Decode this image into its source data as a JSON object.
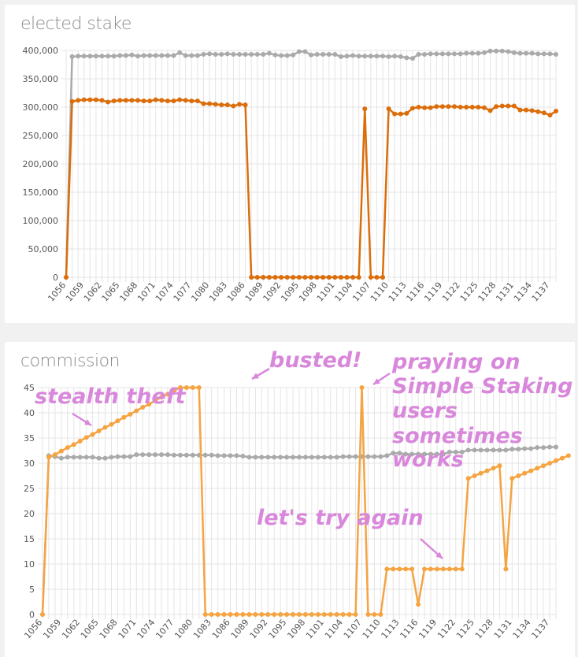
{
  "chart_data": [
    {
      "type": "line",
      "title": "elected stake",
      "x_start": 1056,
      "x_end": 1138,
      "xticks": [
        1056,
        1059,
        1062,
        1065,
        1068,
        1071,
        1074,
        1077,
        1080,
        1083,
        1086,
        1089,
        1092,
        1095,
        1098,
        1101,
        1104,
        1107,
        1110,
        1113,
        1116,
        1119,
        1122,
        1125,
        1128,
        1131,
        1134,
        1137
      ],
      "yticks": [
        0,
        50000,
        100000,
        150000,
        200000,
        250000,
        300000,
        350000,
        400000
      ],
      "ytick_labels": [
        "0",
        "50,000",
        "100,000",
        "150,000",
        "200,000",
        "250,000",
        "300,000",
        "350,000",
        "400,000"
      ],
      "ylim": [
        0,
        400000
      ],
      "grid": true,
      "series": [
        {
          "color": "#aaaaaa",
          "values": [
            0,
            389000,
            390000,
            390000,
            390000,
            390000,
            390000,
            390000,
            390000,
            391000,
            391000,
            392000,
            390000,
            391000,
            391000,
            391000,
            391000,
            391000,
            391000,
            396000,
            391000,
            391000,
            391000,
            393000,
            394000,
            393000,
            393000,
            394000,
            393000,
            393000,
            393000,
            393000,
            393000,
            393000,
            395000,
            392000,
            391000,
            391000,
            392000,
            398000,
            398000,
            392000,
            393000,
            393000,
            393000,
            393000,
            389000,
            390000,
            391000,
            390000,
            390000,
            390000,
            390000,
            390000,
            389000,
            390000,
            389000,
            387000,
            386000,
            393000,
            393000,
            394000,
            394000,
            394000,
            394000,
            394000,
            394000,
            395000,
            395000,
            395000,
            396000,
            399000,
            399000,
            399000,
            398000,
            396000,
            395000,
            395000,
            395000,
            394000,
            394000,
            394000,
            393000
          ]
        },
        {
          "color": "#db6d0b",
          "values": [
            0,
            310000,
            312000,
            313000,
            313000,
            313000,
            312000,
            309000,
            311000,
            312000,
            312000,
            312000,
            312000,
            311000,
            311000,
            313000,
            312000,
            311000,
            311000,
            313000,
            312000,
            311000,
            311000,
            306000,
            306000,
            305000,
            304000,
            304000,
            302000,
            305000,
            304000,
            0,
            0,
            0,
            0,
            0,
            0,
            0,
            0,
            0,
            0,
            0,
            0,
            0,
            0,
            0,
            0,
            0,
            0,
            0,
            297000,
            0,
            0,
            0,
            297000,
            288000,
            288000,
            289000,
            298000,
            300000,
            299000,
            299000,
            301000,
            301000,
            301000,
            301000,
            300000,
            300000,
            300000,
            300000,
            299000,
            294000,
            301000,
            302000,
            302000,
            302000,
            295000,
            295000,
            294000,
            292000,
            290000,
            286000,
            293000
          ]
        }
      ]
    },
    {
      "type": "line",
      "title": "commission",
      "x_start": 1056,
      "x_end": 1138,
      "xticks": [
        1056,
        1059,
        1062,
        1065,
        1068,
        1071,
        1074,
        1077,
        1080,
        1083,
        1086,
        1089,
        1092,
        1095,
        1098,
        1101,
        1104,
        1107,
        1110,
        1113,
        1116,
        1119,
        1122,
        1125,
        1128,
        1131,
        1134,
        1137
      ],
      "yticks": [
        0,
        5,
        10,
        15,
        20,
        25,
        30,
        35,
        40,
        45
      ],
      "ytick_labels": [
        "0",
        "5",
        "10",
        "15",
        "20",
        "25",
        "30",
        "35",
        "40",
        "45"
      ],
      "ylim": [
        0,
        45
      ],
      "grid": true,
      "series": [
        {
          "color": "#aaaaaa",
          "values": [
            0,
            31.5,
            31.3,
            31,
            31.2,
            31.2,
            31.2,
            31.2,
            31.2,
            31,
            31,
            31.2,
            31.3,
            31.3,
            31.3,
            31.7,
            31.7,
            31.7,
            31.7,
            31.7,
            31.7,
            31.6,
            31.6,
            31.6,
            31.6,
            31.6,
            31.6,
            31.6,
            31.5,
            31.5,
            31.5,
            31.5,
            31.4,
            31.2,
            31.2,
            31.2,
            31.2,
            31.2,
            31.2,
            31.2,
            31.2,
            31.2,
            31.2,
            31.2,
            31.2,
            31.2,
            31.2,
            31.2,
            31.3,
            31.3,
            31.3,
            31.3,
            31.3,
            31.3,
            31.3,
            31.5,
            32,
            32,
            31.8,
            31.8,
            31.8,
            31.8,
            31.8,
            31.8,
            31.8,
            32.2,
            32.2,
            32.2,
            32.6,
            32.6,
            32.6,
            32.6,
            32.6,
            32.6,
            32.6,
            32.8,
            32.8,
            32.9,
            32.9,
            33.1,
            33.1,
            33.2,
            33.2
          ]
        },
        {
          "color": "#f5a442",
          "values": [
            0,
            31.2,
            31.7,
            32.4,
            33.1,
            33.7,
            34.4,
            35.1,
            35.7,
            36.4,
            37.1,
            37.7,
            38.4,
            39.1,
            39.7,
            40.4,
            41.1,
            41.7,
            42.4,
            43.1,
            43.7,
            44.4,
            45,
            45,
            45,
            45,
            0,
            0,
            0,
            0,
            0,
            0,
            0,
            0,
            0,
            0,
            0,
            0,
            0,
            0,
            0,
            0,
            0,
            0,
            0,
            0,
            0,
            0,
            0,
            0,
            0,
            45,
            0,
            0,
            0,
            9,
            9,
            9,
            9,
            9,
            2,
            9,
            9,
            9,
            9,
            9,
            9,
            9,
            27,
            27.5,
            28,
            28.5,
            29,
            29.5,
            9,
            27,
            27.5,
            28,
            28.5,
            29,
            29.5,
            30,
            30.5,
            31,
            31.5
          ]
        }
      ],
      "annotations": [
        "stealth theft",
        "busted!",
        "praying on",
        "Simple Staking",
        "users",
        "sometimes",
        "works",
        "let's try again"
      ]
    }
  ]
}
